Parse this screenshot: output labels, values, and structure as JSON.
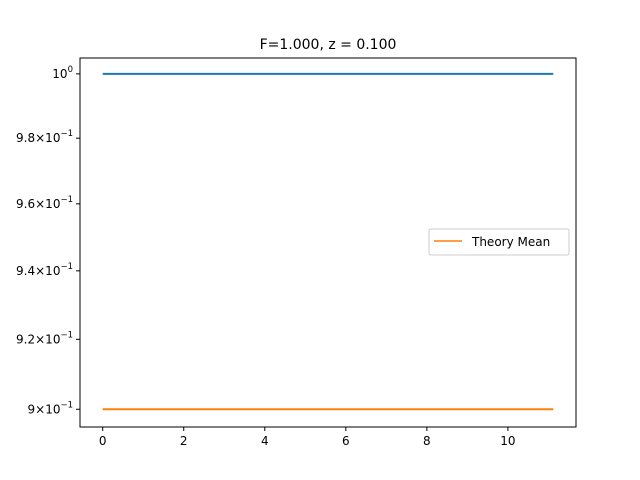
{
  "chart_data": {
    "type": "line",
    "title": "F=1.000, z = 0.100",
    "xlabel": "",
    "ylabel": "",
    "xlim": [
      -0.56,
      11.68
    ],
    "ylim": [
      0.895,
      1.005
    ],
    "yscale": "log",
    "grid": false,
    "legend_loc": "center right",
    "x_ticks": [
      0,
      2,
      4,
      6,
      8,
      10
    ],
    "x_tick_labels": [
      "0",
      "2",
      "4",
      "6",
      "8",
      "10"
    ],
    "y_ticks": [
      {
        "value": 1.0,
        "mantissa": "",
        "exponent": "0"
      },
      {
        "value": 0.98,
        "mantissa": "9.8×",
        "exponent": "−1"
      },
      {
        "value": 0.96,
        "mantissa": "9.6×",
        "exponent": "−1"
      },
      {
        "value": 0.94,
        "mantissa": "9.4×",
        "exponent": "−1"
      },
      {
        "value": 0.92,
        "mantissa": "9.2×",
        "exponent": "−1"
      },
      {
        "value": 0.9,
        "mantissa": "9×",
        "exponent": "−1"
      }
    ],
    "series": [
      {
        "x": [
          0,
          11.12
        ],
        "y": [
          1.0,
          1.0
        ],
        "color": "#1f77b4",
        "in_legend": false
      },
      {
        "name": "Theory Mean",
        "x": [
          0,
          11.12
        ],
        "y": [
          0.9,
          0.9
        ],
        "color": "#ff7f0e",
        "in_legend": true
      }
    ]
  }
}
